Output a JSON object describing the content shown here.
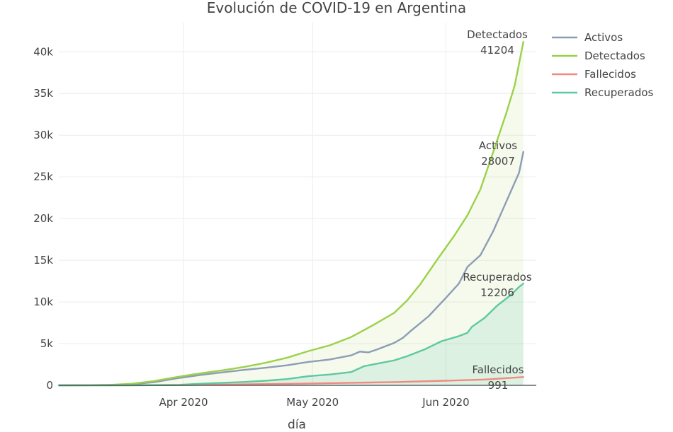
{
  "chart_data": {
    "type": "line",
    "title": "Evolución de COVID-19 en Argentina",
    "xlabel": "día",
    "ylabel": "",
    "x_start": "2020-03-03",
    "x_end": "2020-06-19",
    "xlim": [
      "2020-03-03",
      "2020-06-22"
    ],
    "ylim": [
      0,
      43500
    ],
    "x_ticks": [
      {
        "date": "2020-04-01",
        "label": "Apr 2020"
      },
      {
        "date": "2020-05-01",
        "label": "May 2020"
      },
      {
        "date": "2020-06-01",
        "label": "Jun 2020"
      }
    ],
    "y_ticks": [
      {
        "value": 0,
        "label": "0"
      },
      {
        "value": 5000,
        "label": "5k"
      },
      {
        "value": 10000,
        "label": "10k"
      },
      {
        "value": 15000,
        "label": "15k"
      },
      {
        "value": 20000,
        "label": "20k"
      },
      {
        "value": 25000,
        "label": "25k"
      },
      {
        "value": 30000,
        "label": "30k"
      },
      {
        "value": 35000,
        "label": "35k"
      },
      {
        "value": 40000,
        "label": "40k"
      }
    ],
    "grid": true,
    "legend_position": "top-right",
    "series": [
      {
        "name": "Activos",
        "color": "#8c9db5",
        "fill": false,
        "end_value_label": "28007",
        "points": [
          [
            "2020-03-03",
            1
          ],
          [
            "2020-03-10",
            17
          ],
          [
            "2020-03-15",
            50
          ],
          [
            "2020-03-20",
            140
          ],
          [
            "2020-03-25",
            370
          ],
          [
            "2020-03-31",
            880
          ],
          [
            "2020-04-05",
            1250
          ],
          [
            "2020-04-10",
            1550
          ],
          [
            "2020-04-15",
            1850
          ],
          [
            "2020-04-20",
            2100
          ],
          [
            "2020-04-25",
            2400
          ],
          [
            "2020-04-30",
            2800
          ],
          [
            "2020-05-05",
            3100
          ],
          [
            "2020-05-10",
            3600
          ],
          [
            "2020-05-12",
            4050
          ],
          [
            "2020-05-14",
            3950
          ],
          [
            "2020-05-16",
            4300
          ],
          [
            "2020-05-20",
            5100
          ],
          [
            "2020-05-22",
            5700
          ],
          [
            "2020-05-24",
            6600
          ],
          [
            "2020-05-28",
            8300
          ],
          [
            "2020-06-01",
            10500
          ],
          [
            "2020-06-04",
            12200
          ],
          [
            "2020-06-06",
            14200
          ],
          [
            "2020-06-09",
            15600
          ],
          [
            "2020-06-12",
            18500
          ],
          [
            "2020-06-15",
            22000
          ],
          [
            "2020-06-18",
            25500
          ],
          [
            "2020-06-19",
            28007
          ]
        ]
      },
      {
        "name": "Detectados",
        "color": "#9bd14a",
        "fill": true,
        "fill_color": "rgba(155,209,74,0.10)",
        "end_value_label": "41204",
        "points": [
          [
            "2020-03-03",
            1
          ],
          [
            "2020-03-10",
            20
          ],
          [
            "2020-03-15",
            60
          ],
          [
            "2020-03-20",
            200
          ],
          [
            "2020-03-25",
            500
          ],
          [
            "2020-03-31",
            1050
          ],
          [
            "2020-04-05",
            1450
          ],
          [
            "2020-04-10",
            1800
          ],
          [
            "2020-04-15",
            2200
          ],
          [
            "2020-04-20",
            2700
          ],
          [
            "2020-04-25",
            3300
          ],
          [
            "2020-04-30",
            4100
          ],
          [
            "2020-05-05",
            4800
          ],
          [
            "2020-05-10",
            5800
          ],
          [
            "2020-05-15",
            7200
          ],
          [
            "2020-05-20",
            8700
          ],
          [
            "2020-05-23",
            10200
          ],
          [
            "2020-05-26",
            12100
          ],
          [
            "2020-05-30",
            15100
          ],
          [
            "2020-06-03",
            18000
          ],
          [
            "2020-06-06",
            20400
          ],
          [
            "2020-06-09",
            23500
          ],
          [
            "2020-06-12",
            28000
          ],
          [
            "2020-06-15",
            32600
          ],
          [
            "2020-06-17",
            36000
          ],
          [
            "2020-06-19",
            41204
          ]
        ]
      },
      {
        "name": "Fallecidos",
        "color": "#f08a80",
        "fill": false,
        "end_value_label": "991",
        "points": [
          [
            "2020-03-03",
            0
          ],
          [
            "2020-03-20",
            3
          ],
          [
            "2020-03-31",
            30
          ],
          [
            "2020-04-10",
            90
          ],
          [
            "2020-04-20",
            150
          ],
          [
            "2020-04-30",
            220
          ],
          [
            "2020-05-10",
            300
          ],
          [
            "2020-05-20",
            390
          ],
          [
            "2020-05-31",
            540
          ],
          [
            "2020-06-10",
            690
          ],
          [
            "2020-06-19",
            991
          ]
        ]
      },
      {
        "name": "Recuperados",
        "color": "#5dc9a0",
        "fill": true,
        "fill_color": "rgba(93,201,160,0.16)",
        "end_value_label": "12206",
        "points": [
          [
            "2020-03-03",
            0
          ],
          [
            "2020-03-15",
            1
          ],
          [
            "2020-03-25",
            20
          ],
          [
            "2020-03-31",
            60
          ],
          [
            "2020-04-05",
            200
          ],
          [
            "2020-04-10",
            300
          ],
          [
            "2020-04-15",
            400
          ],
          [
            "2020-04-20",
            550
          ],
          [
            "2020-04-25",
            750
          ],
          [
            "2020-04-30",
            1100
          ],
          [
            "2020-05-05",
            1300
          ],
          [
            "2020-05-10",
            1600
          ],
          [
            "2020-05-13",
            2300
          ],
          [
            "2020-05-15",
            2500
          ],
          [
            "2020-05-20",
            3000
          ],
          [
            "2020-05-23",
            3500
          ],
          [
            "2020-05-27",
            4300
          ],
          [
            "2020-05-31",
            5300
          ],
          [
            "2020-06-04",
            5900
          ],
          [
            "2020-06-06",
            6300
          ],
          [
            "2020-06-07",
            7000
          ],
          [
            "2020-06-10",
            8100
          ],
          [
            "2020-06-13",
            9600
          ],
          [
            "2020-06-16",
            10800
          ],
          [
            "2020-06-18",
            11800
          ],
          [
            "2020-06-19",
            12206
          ]
        ]
      }
    ]
  }
}
